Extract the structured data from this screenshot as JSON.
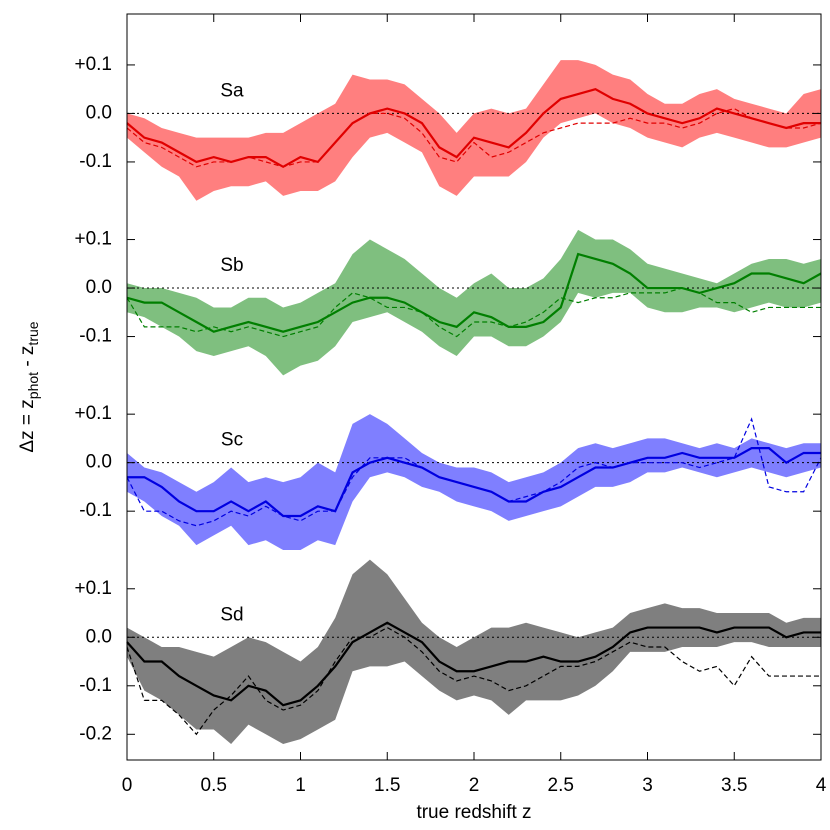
{
  "chart_data": {
    "type": "band-line",
    "xlabel": "true redshift z",
    "ylabel": [
      "Δz = z",
      "phot",
      " - z",
      "true"
    ],
    "xlim": [
      0,
      4
    ],
    "xticks": [
      0,
      0.5,
      1,
      1.5,
      2,
      2.5,
      3,
      3.5,
      4
    ],
    "x": [
      0,
      0.1,
      0.2,
      0.3,
      0.4,
      0.5,
      0.6,
      0.7,
      0.8,
      0.9,
      1,
      1.1,
      1.2,
      1.3,
      1.4,
      1.5,
      1.6,
      1.7,
      1.8,
      1.9,
      2,
      2.1,
      2.2,
      2.3,
      2.4,
      2.5,
      2.6,
      2.7,
      2.8,
      2.9,
      3,
      3.1,
      3.2,
      3.3,
      3.4,
      3.5,
      3.6,
      3.7,
      3.8,
      3.9,
      4
    ],
    "panels": [
      {
        "label": "Sa",
        "ylim": [
          -0.155,
          0.205
        ],
        "yticks": [
          {
            "value": 0.1,
            "label": "+0.1"
          },
          {
            "value": 0,
            "label": "0.0"
          },
          -0.1
        ],
        "hline": 0,
        "band": {
          "color": "#ff7f7f",
          "upper": [
            0,
            -0.01,
            -0.03,
            -0.04,
            -0.05,
            -0.05,
            -0.05,
            -0.05,
            -0.04,
            -0.04,
            -0.02,
            0,
            0.02,
            0.08,
            0.07,
            0.07,
            0.06,
            0.03,
            0,
            -0.04,
            0,
            0.01,
            0,
            0.01,
            0.06,
            0.11,
            0.11,
            0.1,
            0.08,
            0.07,
            0.04,
            0.02,
            0.02,
            0.04,
            0.05,
            0.03,
            0.02,
            0.01,
            0,
            0.04,
            0.05
          ],
          "lower": [
            -0.05,
            -0.08,
            -0.11,
            -0.13,
            -0.18,
            -0.16,
            -0.15,
            -0.15,
            -0.14,
            -0.17,
            -0.16,
            -0.16,
            -0.14,
            -0.09,
            -0.05,
            -0.04,
            -0.06,
            -0.08,
            -0.15,
            -0.17,
            -0.13,
            -0.13,
            -0.13,
            -0.1,
            -0.05,
            -0.02,
            -0.01,
            0,
            -0.02,
            -0.03,
            -0.05,
            -0.06,
            -0.07,
            -0.05,
            -0.04,
            -0.05,
            -0.06,
            -0.07,
            -0.07,
            -0.06,
            -0.05
          ]
        },
        "line": {
          "color": "#e00000",
          "values": [
            -0.02,
            -0.05,
            -0.06,
            -0.08,
            -0.1,
            -0.09,
            -0.1,
            -0.09,
            -0.09,
            -0.11,
            -0.09,
            -0.1,
            -0.06,
            -0.02,
            0,
            0.01,
            0,
            -0.02,
            -0.07,
            -0.09,
            -0.05,
            -0.06,
            -0.07,
            -0.04,
            0,
            0.03,
            0.04,
            0.05,
            0.03,
            0.02,
            0,
            -0.01,
            -0.02,
            -0.01,
            0.01,
            0,
            -0.01,
            -0.02,
            -0.03,
            -0.02,
            -0.02
          ]
        },
        "dashed": {
          "color": "#e00000",
          "values": [
            -0.03,
            -0.06,
            -0.07,
            -0.09,
            -0.11,
            -0.1,
            -0.1,
            -0.09,
            -0.1,
            -0.11,
            -0.1,
            -0.1,
            -0.06,
            -0.02,
            0,
            0,
            -0.01,
            -0.04,
            -0.09,
            -0.1,
            -0.06,
            -0.09,
            -0.08,
            -0.06,
            -0.04,
            -0.03,
            -0.02,
            -0.02,
            -0.02,
            -0.01,
            -0.02,
            -0.02,
            -0.03,
            -0.02,
            0,
            0.01,
            -0.01,
            -0.02,
            -0.03,
            -0.03,
            -0.02
          ]
        }
      },
      {
        "label": "Sb",
        "ylim": [
          -0.155,
          0.205
        ],
        "yticks": [
          {
            "value": 0.1,
            "label": "+0.1"
          },
          {
            "value": 0,
            "label": "0.0"
          },
          -0.1
        ],
        "hline": 0,
        "band": {
          "color": "#7fbf7f",
          "upper": [
            0.01,
            0,
            0,
            -0.01,
            -0.02,
            -0.04,
            -0.04,
            -0.02,
            -0.02,
            -0.04,
            -0.03,
            -0.01,
            0.01,
            0.07,
            0.1,
            0.08,
            0.06,
            0.03,
            0,
            -0.02,
            0.01,
            0.03,
            0,
            0,
            0.02,
            0.06,
            0.12,
            0.1,
            0.1,
            0.08,
            0.05,
            0.04,
            0.03,
            0.02,
            0.01,
            0.03,
            0.05,
            0.06,
            0.06,
            0.05,
            0.06
          ],
          "lower": [
            -0.05,
            -0.06,
            -0.08,
            -0.1,
            -0.13,
            -0.14,
            -0.13,
            -0.12,
            -0.14,
            -0.18,
            -0.16,
            -0.15,
            -0.12,
            -0.07,
            -0.06,
            -0.05,
            -0.07,
            -0.09,
            -0.12,
            -0.14,
            -0.1,
            -0.1,
            -0.12,
            -0.12,
            -0.1,
            -0.07,
            -0.01,
            -0.02,
            -0.01,
            -0.01,
            -0.04,
            -0.05,
            -0.05,
            -0.04,
            -0.04,
            -0.05,
            -0.04,
            -0.03,
            -0.04,
            -0.04,
            -0.03
          ]
        },
        "line": {
          "color": "#007f00",
          "values": [
            -0.02,
            -0.03,
            -0.03,
            -0.05,
            -0.07,
            -0.09,
            -0.08,
            -0.07,
            -0.08,
            -0.09,
            -0.08,
            -0.07,
            -0.05,
            -0.03,
            -0.02,
            -0.02,
            -0.03,
            -0.05,
            -0.07,
            -0.08,
            -0.05,
            -0.06,
            -0.08,
            -0.08,
            -0.07,
            -0.04,
            0.07,
            0.06,
            0.05,
            0.03,
            0,
            0,
            0,
            -0.01,
            0,
            0.01,
            0.03,
            0.03,
            0.02,
            0.01,
            0.03
          ]
        },
        "dashed": {
          "color": "#007f00",
          "values": [
            -0.02,
            -0.08,
            -0.08,
            -0.08,
            -0.09,
            -0.08,
            -0.09,
            -0.08,
            -0.09,
            -0.1,
            -0.09,
            -0.08,
            -0.04,
            -0.01,
            -0.02,
            -0.04,
            -0.04,
            -0.05,
            -0.08,
            -0.1,
            -0.07,
            -0.07,
            -0.08,
            -0.07,
            -0.05,
            -0.02,
            -0.03,
            -0.02,
            -0.02,
            -0.01,
            -0.01,
            -0.01,
            0,
            -0.01,
            -0.03,
            -0.03,
            -0.05,
            -0.04,
            -0.04,
            -0.04,
            -0.04
          ]
        }
      },
      {
        "label": "Sc",
        "ylim": [
          -0.155,
          0.205
        ],
        "yticks": [
          {
            "value": 0.1,
            "label": "+0.1"
          },
          {
            "value": 0,
            "label": "0.0"
          },
          -0.1
        ],
        "hline": 0,
        "band": {
          "color": "#7f7fff",
          "upper": [
            0.02,
            -0.01,
            -0.02,
            -0.04,
            -0.06,
            -0.04,
            -0.01,
            -0.04,
            -0.03,
            -0.04,
            -0.03,
            0,
            -0.02,
            0.08,
            0.1,
            0.08,
            0.05,
            0.02,
            0,
            -0.01,
            -0.01,
            -0.02,
            -0.04,
            -0.03,
            -0.02,
            0,
            0.03,
            0.04,
            0.03,
            0.04,
            0.05,
            0.05,
            0.04,
            0.03,
            0.04,
            0.03,
            0.05,
            0.04,
            0.03,
            0.04,
            0.04
          ],
          "lower": [
            -0.06,
            -0.08,
            -0.11,
            -0.13,
            -0.17,
            -0.15,
            -0.13,
            -0.17,
            -0.16,
            -0.18,
            -0.18,
            -0.16,
            -0.17,
            -0.08,
            -0.03,
            -0.02,
            -0.03,
            -0.05,
            -0.06,
            -0.08,
            -0.09,
            -0.1,
            -0.12,
            -0.11,
            -0.1,
            -0.09,
            -0.07,
            -0.05,
            -0.05,
            -0.04,
            -0.02,
            -0.02,
            -0.01,
            -0.02,
            -0.03,
            -0.02,
            -0.01,
            -0.02,
            -0.03,
            -0.02,
            -0.01
          ]
        },
        "line": {
          "color": "#0000e0",
          "values": [
            -0.03,
            -0.03,
            -0.05,
            -0.08,
            -0.1,
            -0.1,
            -0.08,
            -0.1,
            -0.08,
            -0.11,
            -0.11,
            -0.09,
            -0.1,
            -0.02,
            0,
            0.01,
            0,
            -0.01,
            -0.03,
            -0.04,
            -0.05,
            -0.06,
            -0.08,
            -0.08,
            -0.06,
            -0.05,
            -0.03,
            -0.01,
            -0.01,
            0,
            0.01,
            0.01,
            0.02,
            0.01,
            0.01,
            0.01,
            0.03,
            0.03,
            0,
            0.02,
            0.02
          ]
        },
        "dashed": {
          "color": "#0000e0",
          "values": [
            -0.03,
            -0.1,
            -0.1,
            -0.12,
            -0.13,
            -0.12,
            -0.1,
            -0.11,
            -0.09,
            -0.11,
            -0.12,
            -0.1,
            -0.1,
            -0.03,
            0.01,
            0.01,
            0.01,
            -0.01,
            -0.03,
            -0.04,
            -0.05,
            -0.06,
            -0.08,
            -0.07,
            -0.06,
            -0.04,
            -0.01,
            0,
            -0.01,
            0,
            0,
            0,
            0,
            -0.01,
            0,
            0.01,
            0.09,
            -0.05,
            -0.06,
            -0.06,
            0.01
          ]
        }
      },
      {
        "label": "Sd",
        "ylim": [
          -0.253,
          0.205
        ],
        "yticks": [
          {
            "value": 0.1,
            "label": "+0.1"
          },
          {
            "value": 0,
            "label": "0.0"
          },
          -0.1,
          -0.2
        ],
        "hline": 0,
        "band": {
          "color": "#7f7f7f",
          "upper": [
            0.02,
            0,
            -0.02,
            -0.02,
            -0.03,
            -0.04,
            -0.02,
            0,
            -0.01,
            -0.03,
            -0.05,
            -0.02,
            0.04,
            0.13,
            0.16,
            0.13,
            0.08,
            0.03,
            0,
            -0.02,
            0,
            0.02,
            0.02,
            0.03,
            0.02,
            0.01,
            0,
            0.01,
            0.02,
            0.05,
            0.06,
            0.07,
            0.06,
            0.06,
            0.05,
            0.05,
            0.05,
            0.05,
            0.03,
            0.04,
            0.04
          ],
          "lower": [
            -0.04,
            -0.11,
            -0.13,
            -0.16,
            -0.19,
            -0.19,
            -0.22,
            -0.18,
            -0.2,
            -0.22,
            -0.21,
            -0.19,
            -0.17,
            -0.07,
            -0.06,
            -0.06,
            -0.05,
            -0.08,
            -0.11,
            -0.13,
            -0.12,
            -0.13,
            -0.16,
            -0.13,
            -0.13,
            -0.13,
            -0.12,
            -0.1,
            -0.07,
            -0.03,
            -0.03,
            -0.03,
            -0.02,
            -0.02,
            -0.02,
            -0.01,
            -0.01,
            -0.02,
            -0.02,
            -0.02,
            -0.02
          ]
        },
        "line": {
          "color": "#000000",
          "values": [
            -0.01,
            -0.05,
            -0.05,
            -0.08,
            -0.1,
            -0.12,
            -0.13,
            -0.1,
            -0.11,
            -0.14,
            -0.13,
            -0.1,
            -0.06,
            -0.01,
            0.01,
            0.03,
            0.01,
            -0.01,
            -0.05,
            -0.07,
            -0.07,
            -0.06,
            -0.05,
            -0.05,
            -0.04,
            -0.05,
            -0.05,
            -0.04,
            -0.02,
            0.01,
            0.02,
            0.02,
            0.02,
            0.02,
            0.01,
            0.02,
            0.02,
            0.02,
            0,
            0.01,
            0.01
          ]
        },
        "dashed": {
          "color": "#000000",
          "values": [
            -0.02,
            -0.13,
            -0.13,
            -0.16,
            -0.2,
            -0.15,
            -0.12,
            -0.08,
            -0.13,
            -0.15,
            -0.14,
            -0.11,
            -0.05,
            0,
            0,
            0.02,
            0,
            -0.03,
            -0.07,
            -0.09,
            -0.08,
            -0.09,
            -0.11,
            -0.1,
            -0.08,
            -0.06,
            -0.06,
            -0.05,
            -0.03,
            -0.01,
            -0.02,
            -0.02,
            -0.05,
            -0.07,
            -0.06,
            -0.1,
            -0.04,
            -0.08,
            -0.08,
            -0.08,
            -0.08
          ]
        }
      }
    ]
  }
}
